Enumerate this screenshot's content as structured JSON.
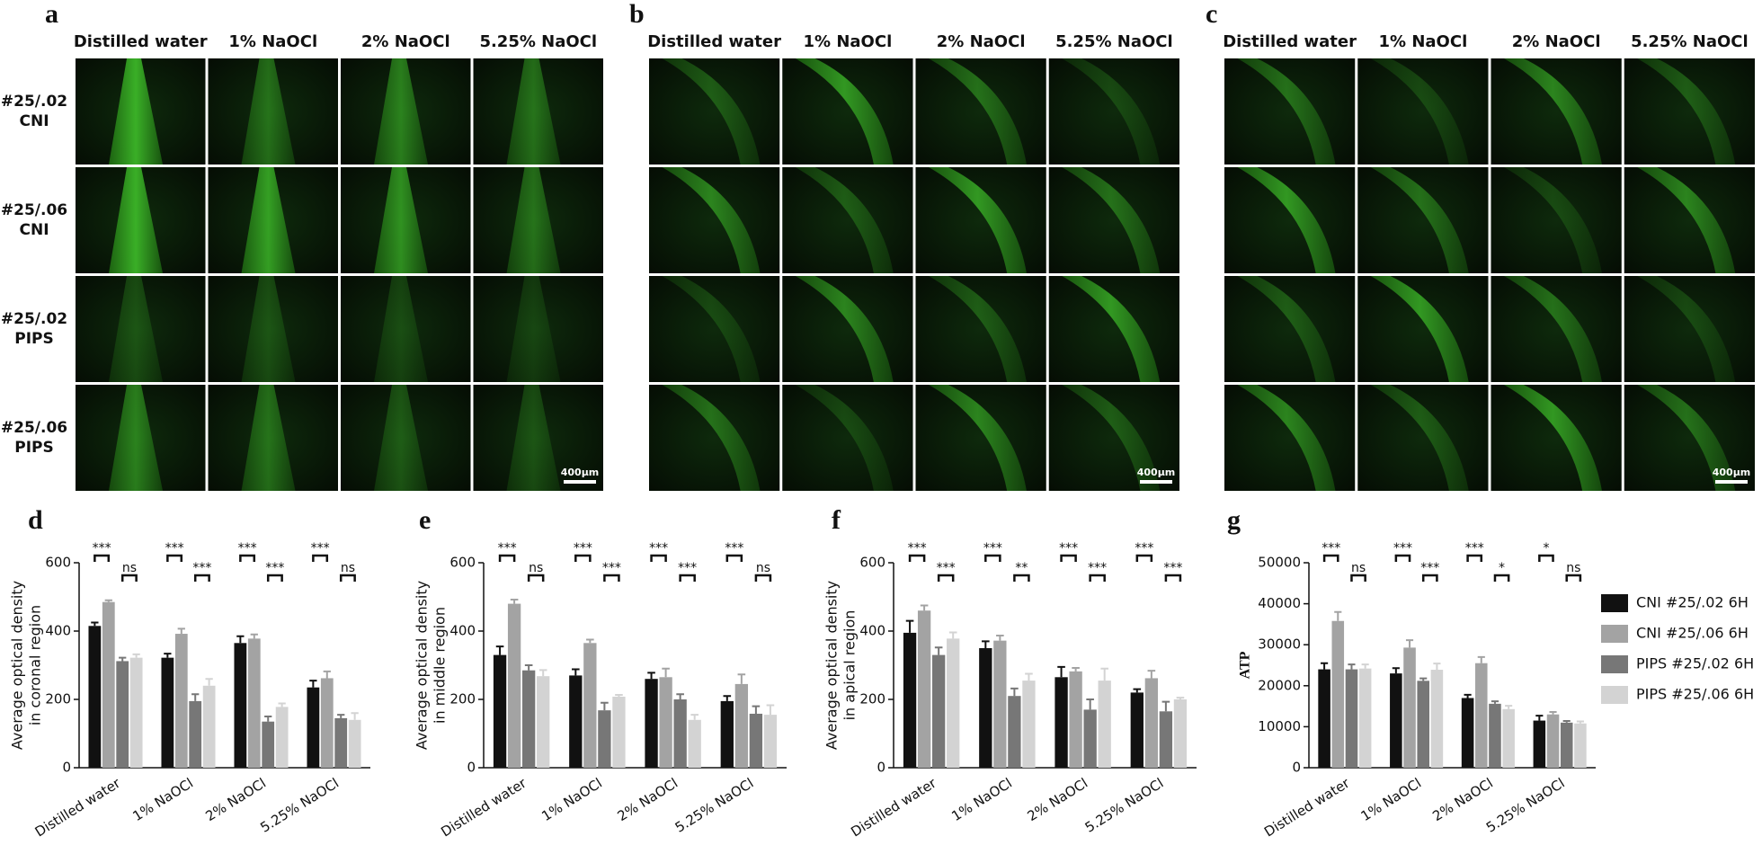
{
  "panels": [
    {
      "letter": "a",
      "columns": [
        "Distilled water",
        "1% NaOCl",
        "2% NaOCl",
        "5.25% NaOCl"
      ],
      "rows": [
        [
          "#25/.02",
          "CNI"
        ],
        [
          "#25/.06",
          "CNI"
        ],
        [
          "#25/.02",
          "PIPS"
        ],
        [
          "#25/.06",
          "PIPS"
        ]
      ],
      "scale_bar": "400μm"
    },
    {
      "letter": "b",
      "columns": [
        "Distilled water",
        "1% NaOCl",
        "2% NaOCl",
        "5.25% NaOCl"
      ],
      "scale_bar": "400μm"
    },
    {
      "letter": "c",
      "columns": [
        "Distilled water",
        "1% NaOCl",
        "2% NaOCl",
        "5.25% NaOCl"
      ],
      "scale_bar": "400μm"
    }
  ],
  "chart_data": [
    {
      "type": "bar",
      "letter": "d",
      "ylabel": [
        "Average optical density",
        "in coronal region"
      ],
      "categories": [
        "Distilled water",
        "1% NaOCl",
        "2% NaOCl",
        "5.25% NaOCl"
      ],
      "series": [
        {
          "color": "#111111",
          "values": [
            415,
            322,
            365,
            235
          ],
          "errors": [
            10,
            12,
            20,
            20
          ]
        },
        {
          "color": "#a3a3a3",
          "values": [
            485,
            392,
            378,
            262
          ],
          "errors": [
            5,
            15,
            12,
            20
          ]
        },
        {
          "color": "#777777",
          "values": [
            312,
            195,
            135,
            145
          ],
          "errors": [
            10,
            20,
            15,
            10
          ]
        },
        {
          "color": "#d3d3d3",
          "values": [
            322,
            240,
            178,
            140
          ],
          "errors": [
            10,
            20,
            10,
            20
          ]
        }
      ],
      "significance": [
        [
          "***",
          "ns"
        ],
        [
          "***",
          "***"
        ],
        [
          "***",
          "***"
        ],
        [
          "***",
          "ns"
        ]
      ],
      "ylim": [
        0,
        600
      ],
      "yticks": [
        0,
        200,
        400,
        600
      ]
    },
    {
      "type": "bar",
      "letter": "e",
      "ylabel": [
        "Average optical density",
        "in middle region"
      ],
      "categories": [
        "Distilled water",
        "1% NaOCl",
        "2% NaOCl",
        "5.25% NaOCl"
      ],
      "series": [
        {
          "color": "#111111",
          "values": [
            330,
            270,
            260,
            195
          ],
          "errors": [
            25,
            18,
            18,
            15
          ]
        },
        {
          "color": "#a3a3a3",
          "values": [
            480,
            365,
            265,
            245
          ],
          "errors": [
            12,
            10,
            25,
            28
          ]
        },
        {
          "color": "#777777",
          "values": [
            285,
            168,
            200,
            158
          ],
          "errors": [
            15,
            22,
            15,
            22
          ]
        },
        {
          "color": "#d3d3d3",
          "values": [
            268,
            208,
            140,
            155
          ],
          "errors": [
            18,
            5,
            15,
            28
          ]
        }
      ],
      "significance": [
        [
          "***",
          "ns"
        ],
        [
          "***",
          "***"
        ],
        [
          "***",
          "***"
        ],
        [
          "***",
          "ns"
        ]
      ],
      "ylim": [
        0,
        600
      ],
      "yticks": [
        0,
        200,
        400,
        600
      ]
    },
    {
      "type": "bar",
      "letter": "f",
      "ylabel": [
        "Average optical density",
        "in apical region"
      ],
      "categories": [
        "Distilled water",
        "1% NaOCl",
        "2% NaOCl",
        "5.25% NaOCl"
      ],
      "series": [
        {
          "color": "#111111",
          "values": [
            395,
            350,
            265,
            220
          ],
          "errors": [
            35,
            20,
            30,
            10
          ]
        },
        {
          "color": "#a3a3a3",
          "values": [
            460,
            372,
            282,
            262
          ],
          "errors": [
            15,
            15,
            10,
            22
          ]
        },
        {
          "color": "#777777",
          "values": [
            330,
            210,
            170,
            165
          ],
          "errors": [
            22,
            22,
            30,
            28
          ]
        },
        {
          "color": "#d3d3d3",
          "values": [
            378,
            255,
            255,
            200
          ],
          "errors": [
            18,
            20,
            35,
            5
          ]
        }
      ],
      "significance": [
        [
          "***",
          "***"
        ],
        [
          "***",
          "**"
        ],
        [
          "***",
          "***"
        ],
        [
          "***",
          "***"
        ]
      ],
      "ylim": [
        0,
        600
      ],
      "yticks": [
        0,
        200,
        400,
        600
      ]
    },
    {
      "type": "bar",
      "letter": "g",
      "ylabel": [
        "ATP"
      ],
      "categories": [
        "Distilled water",
        "1% NaOCl",
        "2% NaOCl",
        "5.25% NaOCl"
      ],
      "series": [
        {
          "name": "CNI #25/.02 6H",
          "color": "#111111",
          "values": [
            24000,
            23000,
            17000,
            11500
          ],
          "errors": [
            1500,
            1300,
            800,
            1200
          ]
        },
        {
          "name": "CNI #25/.06 6H",
          "color": "#a3a3a3",
          "values": [
            35800,
            29300,
            25500,
            13000
          ],
          "errors": [
            2200,
            1800,
            1500,
            600
          ]
        },
        {
          "name": "PIPS #25/.02 6H",
          "color": "#777777",
          "values": [
            24000,
            21200,
            15600,
            11000
          ],
          "errors": [
            1200,
            600,
            600,
            400
          ]
        },
        {
          "name": "PIPS #25/.06 6H",
          "color": "#d3d3d3",
          "values": [
            24200,
            23900,
            14300,
            10800
          ],
          "errors": [
            1000,
            1500,
            800,
            500
          ]
        }
      ],
      "significance": [
        [
          "***",
          "ns"
        ],
        [
          "***",
          "***"
        ],
        [
          "***",
          "*"
        ],
        [
          "*",
          "ns"
        ]
      ],
      "ylim": [
        0,
        50000
      ],
      "yticks": [
        0,
        10000,
        20000,
        30000,
        40000,
        50000
      ]
    }
  ]
}
